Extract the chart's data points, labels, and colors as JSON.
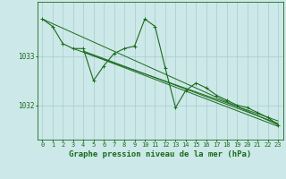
{
  "bg_color": "#cce8e8",
  "grid_color": "#aacccc",
  "line_color": "#1a6b1a",
  "xlabel": "Graphe pression niveau de la mer (hPa)",
  "xlabel_fontsize": 6.5,
  "tick_fontsize": 5.5,
  "ylabel_ticks": [
    1032,
    1033
  ],
  "xlim": [
    -0.5,
    23.5
  ],
  "ylim": [
    1031.3,
    1034.1
  ],
  "series": [
    [
      0,
      1033.75
    ],
    [
      1,
      1033.6
    ],
    [
      2,
      1033.25
    ],
    [
      3,
      1033.15
    ],
    [
      4,
      1033.15
    ],
    [
      5,
      1032.5
    ],
    [
      6,
      1032.8
    ],
    [
      7,
      1033.05
    ],
    [
      8,
      1033.15
    ],
    [
      9,
      1033.2
    ],
    [
      10,
      1033.75
    ],
    [
      11,
      1033.6
    ],
    [
      12,
      1032.75
    ],
    [
      13,
      1031.95
    ],
    [
      14,
      1032.3
    ],
    [
      15,
      1032.45
    ],
    [
      16,
      1032.35
    ],
    [
      17,
      1032.2
    ],
    [
      18,
      1032.1
    ],
    [
      19,
      1032.0
    ],
    [
      20,
      1031.95
    ],
    [
      21,
      1031.85
    ],
    [
      22,
      1031.75
    ],
    [
      23,
      1031.6
    ]
  ],
  "trend_lines": [
    {
      "x0": 0,
      "y0": 1033.75,
      "x1": 23,
      "y1": 1031.6
    },
    {
      "x0": 3,
      "y0": 1033.15,
      "x1": 23,
      "y1": 1031.68
    },
    {
      "x0": 4,
      "y0": 1033.1,
      "x1": 23,
      "y1": 1031.63
    },
    {
      "x0": 4,
      "y0": 1033.08,
      "x1": 23,
      "y1": 1031.57
    }
  ]
}
